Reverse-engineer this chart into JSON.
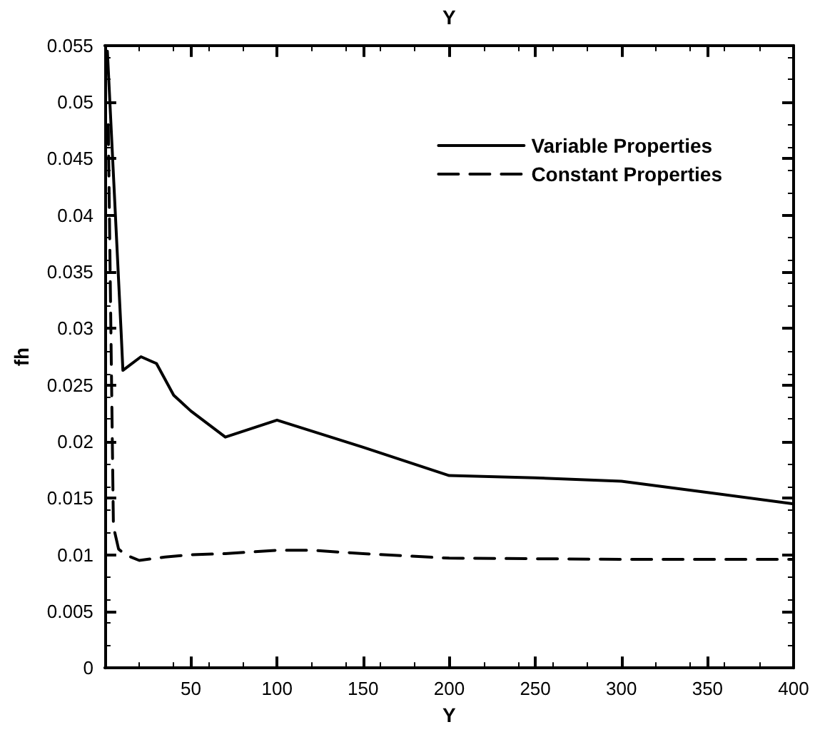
{
  "chart_data": {
    "type": "line",
    "xlabel": "Y",
    "x2label": "Y",
    "ylabel": "fh",
    "xlim": [
      0,
      400
    ],
    "xticks": [
      50,
      100,
      150,
      200,
      250,
      300,
      350,
      400
    ],
    "ylim": [
      0,
      0.055
    ],
    "yticks": [
      0,
      0.005,
      0.01,
      0.015,
      0.02,
      0.025,
      0.03,
      0.035,
      0.04,
      0.045,
      0.05,
      0.055
    ],
    "grid": false,
    "legend": "top right",
    "marker": "none",
    "series": [
      {
        "name": "Variable Properties",
        "color": "#000000",
        "line_style": "solid",
        "x": [
          1.5,
          9.5,
          10.5,
          21,
          30,
          40,
          50,
          70,
          100,
          150,
          200,
          250,
          300,
          350,
          400
        ],
        "values": [
          0.0545,
          0.0296,
          0.0263,
          0.0275,
          0.0269,
          0.0241,
          0.0227,
          0.0204,
          0.0219,
          0.0195,
          0.017,
          0.0168,
          0.0165,
          0.0155,
          0.0145
        ]
      },
      {
        "name": "Constant Properties",
        "color": "#000000",
        "line_style": "dashed",
        "x": [
          2,
          5,
          8,
          12,
          20,
          35,
          50,
          70,
          100,
          120,
          150,
          200,
          300,
          400
        ],
        "values": [
          0.048,
          0.0125,
          0.0105,
          0.01,
          0.0095,
          0.0098,
          0.01,
          0.0101,
          0.0104,
          0.0104,
          0.0101,
          0.0097,
          0.0096,
          0.0096
        ]
      }
    ]
  }
}
